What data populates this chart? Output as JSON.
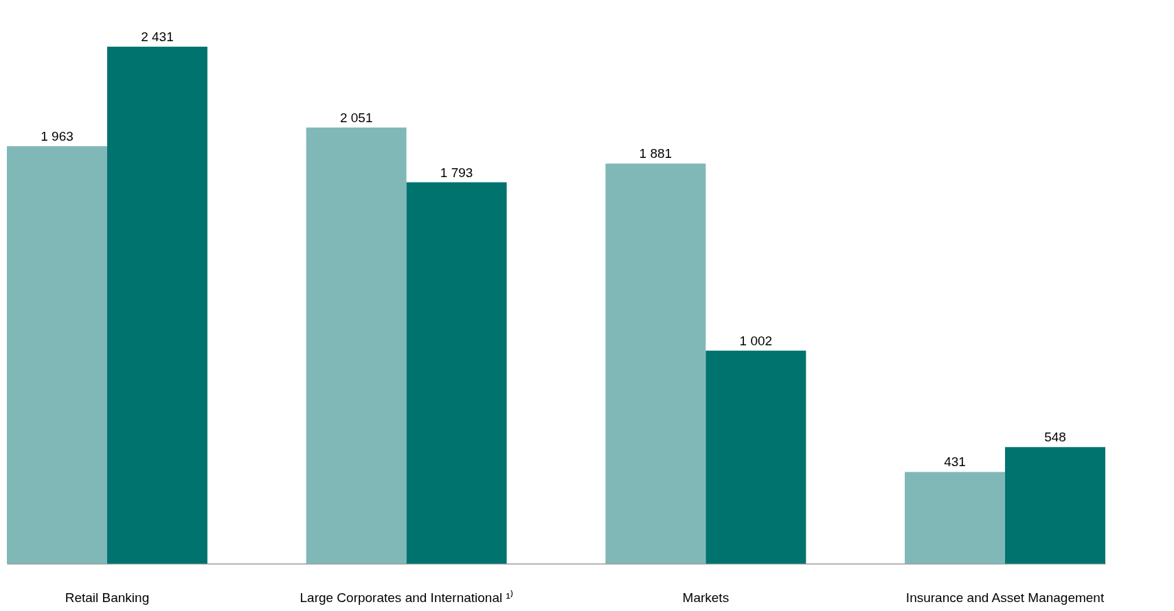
{
  "chart_data": {
    "type": "bar",
    "categories": [
      "Retail Banking",
      "Large Corporates and International ¹⁾",
      "Markets",
      "Insurance and Asset Management"
    ],
    "series": [
      {
        "color": "#80b8b8",
        "values": [
          1963,
          2051,
          1881,
          431
        ],
        "value_labels": [
          "1 963",
          "2 051",
          "1 881",
          "431"
        ]
      },
      {
        "color": "#00736f",
        "values": [
          2431,
          1793,
          1002,
          548
        ],
        "value_labels": [
          "2 431",
          "1 793",
          "1 002",
          "548"
        ]
      }
    ],
    "grid": false,
    "legend": false
  }
}
